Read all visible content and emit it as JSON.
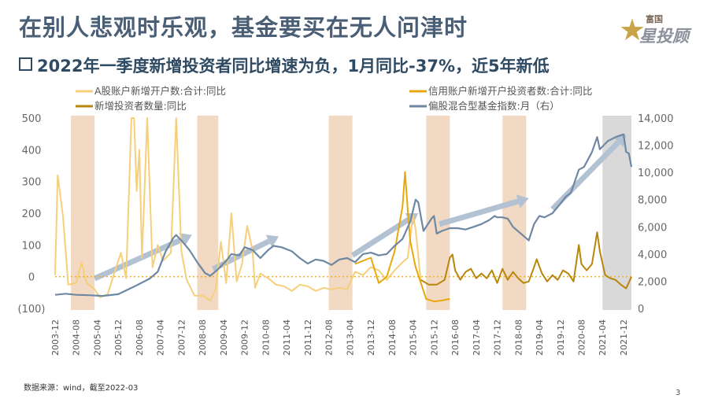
{
  "title": "在别人悲观时乐观，基金要买在无人问津时",
  "subtitle": "2022年一季度新增投资者同比增速为负，1月同比-37%，近5年新低",
  "logo": {
    "small": "富国",
    "big": "星投顾"
  },
  "source": "数据来源：wind，截至2022-03",
  "page_number": "3",
  "colors": {
    "a_share": "#f6cf7a",
    "credit": "#e8a80c",
    "new_investors": "#b8860b",
    "fund_index": "#6e88a3",
    "shade": "#f2d9c4",
    "shade_gray": "#d9d9d9",
    "arrow": "#b3c2d3",
    "zero_line": "#f0b020",
    "neg_label": "#c00000"
  },
  "chart_data": {
    "type": "line",
    "x_ticks": [
      "2003-12",
      "2004-08",
      "2005-04",
      "2005-12",
      "2006-08",
      "2007-04",
      "2007-12",
      "2008-08",
      "2009-04",
      "2009-12",
      "2010-08",
      "2011-04",
      "2011-12",
      "2012-08",
      "2013-04",
      "2013-12",
      "2014-08",
      "2015-04",
      "2015-12",
      "2016-08",
      "2017-04",
      "2017-12",
      "2018-08",
      "2019-04",
      "2019-12",
      "2020-08",
      "2021-04",
      "2021-12"
    ],
    "x_range": [
      "2003-12",
      "2022-03"
    ],
    "y_left": {
      "ticks": [
        "500",
        "400",
        "300",
        "200",
        "100",
        "0",
        "(100)"
      ],
      "range": [
        -100,
        500
      ]
    },
    "y_right": {
      "ticks": [
        "14,000",
        "12,000",
        "10,000",
        "8,000",
        "6,000",
        "4,000",
        "2,000",
        "0"
      ],
      "range": [
        0,
        14000
      ]
    },
    "shaded_periods": [
      {
        "start": "2004-06",
        "end": "2005-03",
        "color": "shade"
      },
      {
        "start": "2008-06",
        "end": "2009-02",
        "color": "shade"
      },
      {
        "start": "2012-08",
        "end": "2013-05",
        "color": "shade"
      },
      {
        "start": "2015-09",
        "end": "2016-06",
        "color": "shade"
      },
      {
        "start": "2018-02",
        "end": "2018-11",
        "color": "shade"
      },
      {
        "start": "2021-04",
        "end": "2022-03",
        "color": "shade_gray"
      }
    ],
    "arrows": [
      {
        "from": [
          "2005-03",
          2200
        ],
        "to": [
          "2008-04",
          5400
        ]
      },
      {
        "from": [
          "2008-12",
          2900
        ],
        "to": [
          "2011-01",
          5300
        ]
      },
      {
        "from": [
          "2013-05",
          3900
        ],
        "to": [
          "2015-06",
          7000
        ]
      },
      {
        "from": [
          "2016-02",
          6200
        ],
        "to": [
          "2018-12",
          8100
        ]
      },
      {
        "from": [
          "2019-09",
          7300
        ],
        "to": [
          "2022-01",
          12800
        ]
      }
    ],
    "series": [
      {
        "name": "A股账户新增开户数:合计:同比",
        "axis": "left",
        "color": "a_share",
        "points": [
          [
            "2003-12",
            5
          ],
          [
            "2004-01",
            320
          ],
          [
            "2004-03",
            190
          ],
          [
            "2004-05",
            -25
          ],
          [
            "2004-08",
            -20
          ],
          [
            "2004-10",
            45
          ],
          [
            "2004-12",
            -20
          ],
          [
            "2005-03",
            -40
          ],
          [
            "2005-05",
            -65
          ],
          [
            "2005-08",
            -55
          ],
          [
            "2005-11",
            25
          ],
          [
            "2006-01",
            75
          ],
          [
            "2006-03",
            -5
          ],
          [
            "2006-05",
            500
          ],
          [
            "2006-06",
            500
          ],
          [
            "2006-07",
            270
          ],
          [
            "2006-08",
            400
          ],
          [
            "2006-09",
            60
          ],
          [
            "2006-11",
            500
          ],
          [
            "2007-01",
            30
          ],
          [
            "2007-03",
            100
          ],
          [
            "2007-05",
            50
          ],
          [
            "2007-08",
            75
          ],
          [
            "2007-10",
            500
          ],
          [
            "2007-12",
            80
          ],
          [
            "2008-02",
            -10
          ],
          [
            "2008-05",
            -60
          ],
          [
            "2008-08",
            -60
          ],
          [
            "2008-11",
            -75
          ],
          [
            "2009-01",
            -40
          ],
          [
            "2009-03",
            110
          ],
          [
            "2009-05",
            -20
          ],
          [
            "2009-07",
            200
          ],
          [
            "2009-09",
            -15
          ],
          [
            "2009-11",
            40
          ],
          [
            "2010-01",
            160
          ],
          [
            "2010-03",
            85
          ],
          [
            "2010-04",
            -35
          ],
          [
            "2010-06",
            10
          ],
          [
            "2010-09",
            -5
          ],
          [
            "2010-12",
            -25
          ],
          [
            "2011-03",
            -30
          ],
          [
            "2011-06",
            -45
          ],
          [
            "2011-09",
            -25
          ],
          [
            "2011-12",
            -30
          ],
          [
            "2012-03",
            -45
          ],
          [
            "2012-06",
            -35
          ],
          [
            "2012-09",
            -40
          ],
          [
            "2012-12",
            -35
          ],
          [
            "2013-03",
            -40
          ],
          [
            "2013-06",
            15
          ],
          [
            "2013-09",
            5
          ],
          [
            "2013-12",
            30
          ],
          [
            "2014-03",
            20
          ],
          [
            "2014-06",
            -10
          ],
          [
            "2014-09",
            20
          ],
          [
            "2014-12",
            45
          ],
          [
            "2015-02",
            60
          ],
          [
            "2015-04",
            195
          ],
          [
            "2015-05",
            150
          ],
          [
            "2015-07",
            -20
          ]
        ]
      },
      {
        "name": "信用账户新增开户投资者数:合计:同比",
        "axis": "left",
        "color": "credit",
        "points": [
          [
            "2013-06",
            40
          ],
          [
            "2013-12",
            60
          ],
          [
            "2014-03",
            -20
          ],
          [
            "2014-06",
            0
          ],
          [
            "2014-09",
            80
          ],
          [
            "2014-12",
            220
          ],
          [
            "2015-01",
            330
          ],
          [
            "2015-02",
            210
          ],
          [
            "2015-03",
            110
          ],
          [
            "2015-05",
            30
          ],
          [
            "2015-07",
            -20
          ],
          [
            "2015-09",
            -70
          ],
          [
            "2015-12",
            -78
          ],
          [
            "2016-03",
            -75
          ],
          [
            "2016-06",
            -70
          ]
        ]
      },
      {
        "name": "新增投资者数量:同比",
        "axis": "left",
        "color": "new_investors",
        "points": [
          [
            "2015-07",
            -10
          ],
          [
            "2015-10",
            -25
          ],
          [
            "2016-01",
            -25
          ],
          [
            "2016-04",
            -10
          ],
          [
            "2016-06",
            60
          ],
          [
            "2016-07",
            70
          ],
          [
            "2016-08",
            20
          ],
          [
            "2016-10",
            -10
          ],
          [
            "2016-12",
            15
          ],
          [
            "2017-02",
            25
          ],
          [
            "2017-04",
            -5
          ],
          [
            "2017-06",
            10
          ],
          [
            "2017-08",
            -5
          ],
          [
            "2017-10",
            20
          ],
          [
            "2017-12",
            -20
          ],
          [
            "2018-02",
            25
          ],
          [
            "2018-04",
            -10
          ],
          [
            "2018-06",
            15
          ],
          [
            "2018-08",
            -5
          ],
          [
            "2018-10",
            -20
          ],
          [
            "2018-12",
            -15
          ],
          [
            "2019-02",
            30
          ],
          [
            "2019-03",
            55
          ],
          [
            "2019-05",
            10
          ],
          [
            "2019-07",
            -15
          ],
          [
            "2019-09",
            5
          ],
          [
            "2019-11",
            -10
          ],
          [
            "2020-01",
            20
          ],
          [
            "2020-03",
            10
          ],
          [
            "2020-05",
            -15
          ],
          [
            "2020-07",
            100
          ],
          [
            "2020-08",
            40
          ],
          [
            "2020-10",
            20
          ],
          [
            "2020-12",
            40
          ],
          [
            "2021-02",
            140
          ],
          [
            "2021-03",
            80
          ],
          [
            "2021-05",
            5
          ],
          [
            "2021-07",
            -5
          ],
          [
            "2021-09",
            -10
          ],
          [
            "2021-11",
            -25
          ],
          [
            "2022-01",
            -37
          ],
          [
            "2022-03",
            0
          ]
        ]
      },
      {
        "name": "偏股混合型基金指数:月（右）",
        "axis": "right",
        "color": "fund_index",
        "points": [
          [
            "2003-12",
            1000
          ],
          [
            "2004-04",
            1080
          ],
          [
            "2004-08",
            1000
          ],
          [
            "2005-01",
            970
          ],
          [
            "2005-06",
            920
          ],
          [
            "2005-12",
            1050
          ],
          [
            "2006-06",
            1600
          ],
          [
            "2006-12",
            2200
          ],
          [
            "2007-03",
            2700
          ],
          [
            "2007-06",
            4200
          ],
          [
            "2007-09",
            5200
          ],
          [
            "2007-10",
            5400
          ],
          [
            "2007-12",
            5000
          ],
          [
            "2008-03",
            4300
          ],
          [
            "2008-06",
            3400
          ],
          [
            "2008-09",
            2600
          ],
          [
            "2008-11",
            2400
          ],
          [
            "2009-02",
            2900
          ],
          [
            "2009-05",
            3500
          ],
          [
            "2009-07",
            4000
          ],
          [
            "2009-10",
            3900
          ],
          [
            "2009-12",
            4500
          ],
          [
            "2010-03",
            4300
          ],
          [
            "2010-06",
            3700
          ],
          [
            "2010-09",
            4300
          ],
          [
            "2010-11",
            4600
          ],
          [
            "2011-02",
            4500
          ],
          [
            "2011-06",
            4200
          ],
          [
            "2011-09",
            3700
          ],
          [
            "2011-12",
            3300
          ],
          [
            "2012-03",
            3600
          ],
          [
            "2012-06",
            3500
          ],
          [
            "2012-09",
            3200
          ],
          [
            "2012-12",
            3600
          ],
          [
            "2013-03",
            3700
          ],
          [
            "2013-06",
            3400
          ],
          [
            "2013-09",
            4000
          ],
          [
            "2013-12",
            4100
          ],
          [
            "2014-03",
            3900
          ],
          [
            "2014-06",
            4000
          ],
          [
            "2014-09",
            4600
          ],
          [
            "2014-12",
            5100
          ],
          [
            "2015-03",
            6400
          ],
          [
            "2015-05",
            8000
          ],
          [
            "2015-06",
            7800
          ],
          [
            "2015-08",
            5700
          ],
          [
            "2015-11",
            6600
          ],
          [
            "2015-12",
            6800
          ],
          [
            "2016-01",
            5500
          ],
          [
            "2016-03",
            5700
          ],
          [
            "2016-06",
            5900
          ],
          [
            "2016-09",
            5900
          ],
          [
            "2016-12",
            5800
          ],
          [
            "2017-03",
            6000
          ],
          [
            "2017-06",
            6200
          ],
          [
            "2017-09",
            6500
          ],
          [
            "2017-11",
            6800
          ],
          [
            "2017-12",
            6700
          ],
          [
            "2018-02",
            6700
          ],
          [
            "2018-04",
            6600
          ],
          [
            "2018-06",
            6000
          ],
          [
            "2018-09",
            5500
          ],
          [
            "2018-12",
            5000
          ],
          [
            "2019-02",
            6200
          ],
          [
            "2019-04",
            6800
          ],
          [
            "2019-06",
            6700
          ],
          [
            "2019-09",
            7000
          ],
          [
            "2019-12",
            7700
          ],
          [
            "2020-02",
            8200
          ],
          [
            "2020-04",
            8500
          ],
          [
            "2020-07",
            10200
          ],
          [
            "2020-09",
            10400
          ],
          [
            "2020-12",
            11500
          ],
          [
            "2021-02",
            12600
          ],
          [
            "2021-03",
            11700
          ],
          [
            "2021-06",
            12300
          ],
          [
            "2021-09",
            12600
          ],
          [
            "2021-12",
            12800
          ],
          [
            "2022-01",
            11500
          ],
          [
            "2022-02",
            11400
          ],
          [
            "2022-03",
            10400
          ]
        ]
      }
    ]
  }
}
